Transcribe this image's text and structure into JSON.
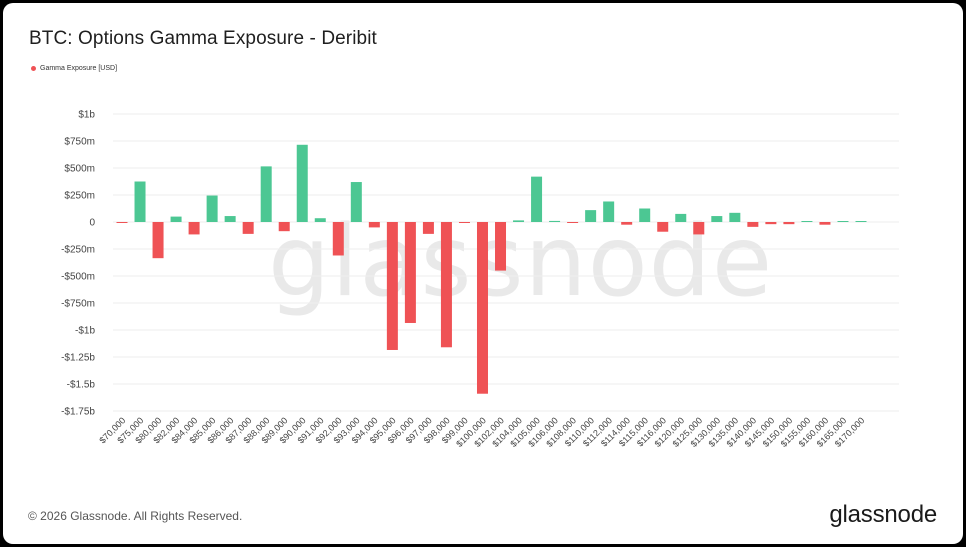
{
  "footer": {
    "copyright": "© 2026 Glassnode. All Rights Reserved."
  },
  "brand": {
    "logo_text": "glassnode",
    "watermark": "glassnode"
  },
  "colors": {
    "positive": "#4cc793",
    "negative": "#ef5255",
    "grid": "#eeeeee"
  },
  "chart_data": {
    "type": "bar",
    "title": "BTC: Options Gamma Exposure - Deribit",
    "xlabel": "",
    "ylabel": "",
    "legend": {
      "placement": "top-left",
      "entries": [
        "Gamma Exposure [USD]"
      ]
    },
    "grid": true,
    "ylim": [
      -1750000000,
      1000000000
    ],
    "yticks": [
      1000000000,
      750000000,
      500000000,
      250000000,
      0,
      -250000000,
      -500000000,
      -750000000,
      -1000000000,
      -1250000000,
      -1500000000,
      -1750000000
    ],
    "ytick_labels": [
      "$1b",
      "$750m",
      "$500m",
      "$250m",
      "0",
      "-$250m",
      "-$500m",
      "-$750m",
      "-$1b",
      "-$1.25b",
      "-$1.5b",
      "-$1.75b"
    ],
    "categories": [
      "$70,000",
      "$75,000",
      "$80,000",
      "$82,000",
      "$84,000",
      "$85,000",
      "$86,000",
      "$87,000",
      "$88,000",
      "$89,000",
      "$90,000",
      "$91,000",
      "$92,000",
      "$93,000",
      "$94,000",
      "$95,000",
      "$96,000",
      "$97,000",
      "$98,000",
      "$99,000",
      "$100,000",
      "$102,000",
      "$104,000",
      "$105,000",
      "$106,000",
      "$108,000",
      "$110,000",
      "$112,000",
      "$114,000",
      "$115,000",
      "$116,000",
      "$120,000",
      "$125,000",
      "$130,000",
      "$135,000",
      "$140,000",
      "$145,000",
      "$150,000",
      "$155,000",
      "$160,000",
      "$165,000",
      "$170,000"
    ],
    "series": [
      {
        "name": "Gamma Exposure [USD]",
        "values": [
          -5000000,
          375000000,
          -335000000,
          50000000,
          -115000000,
          245000000,
          55000000,
          -110000000,
          515000000,
          -85000000,
          715000000,
          35000000,
          -310000000,
          370000000,
          -50000000,
          -1185000000,
          -935000000,
          -110000000,
          -1160000000,
          -5000000,
          -1590000000,
          -450000000,
          15000000,
          420000000,
          10000000,
          -8000000,
          110000000,
          190000000,
          -25000000,
          125000000,
          -90000000,
          75000000,
          -115000000,
          55000000,
          85000000,
          -45000000,
          -20000000,
          -20000000,
          8000000,
          -25000000,
          4000000,
          2000000
        ]
      }
    ]
  }
}
